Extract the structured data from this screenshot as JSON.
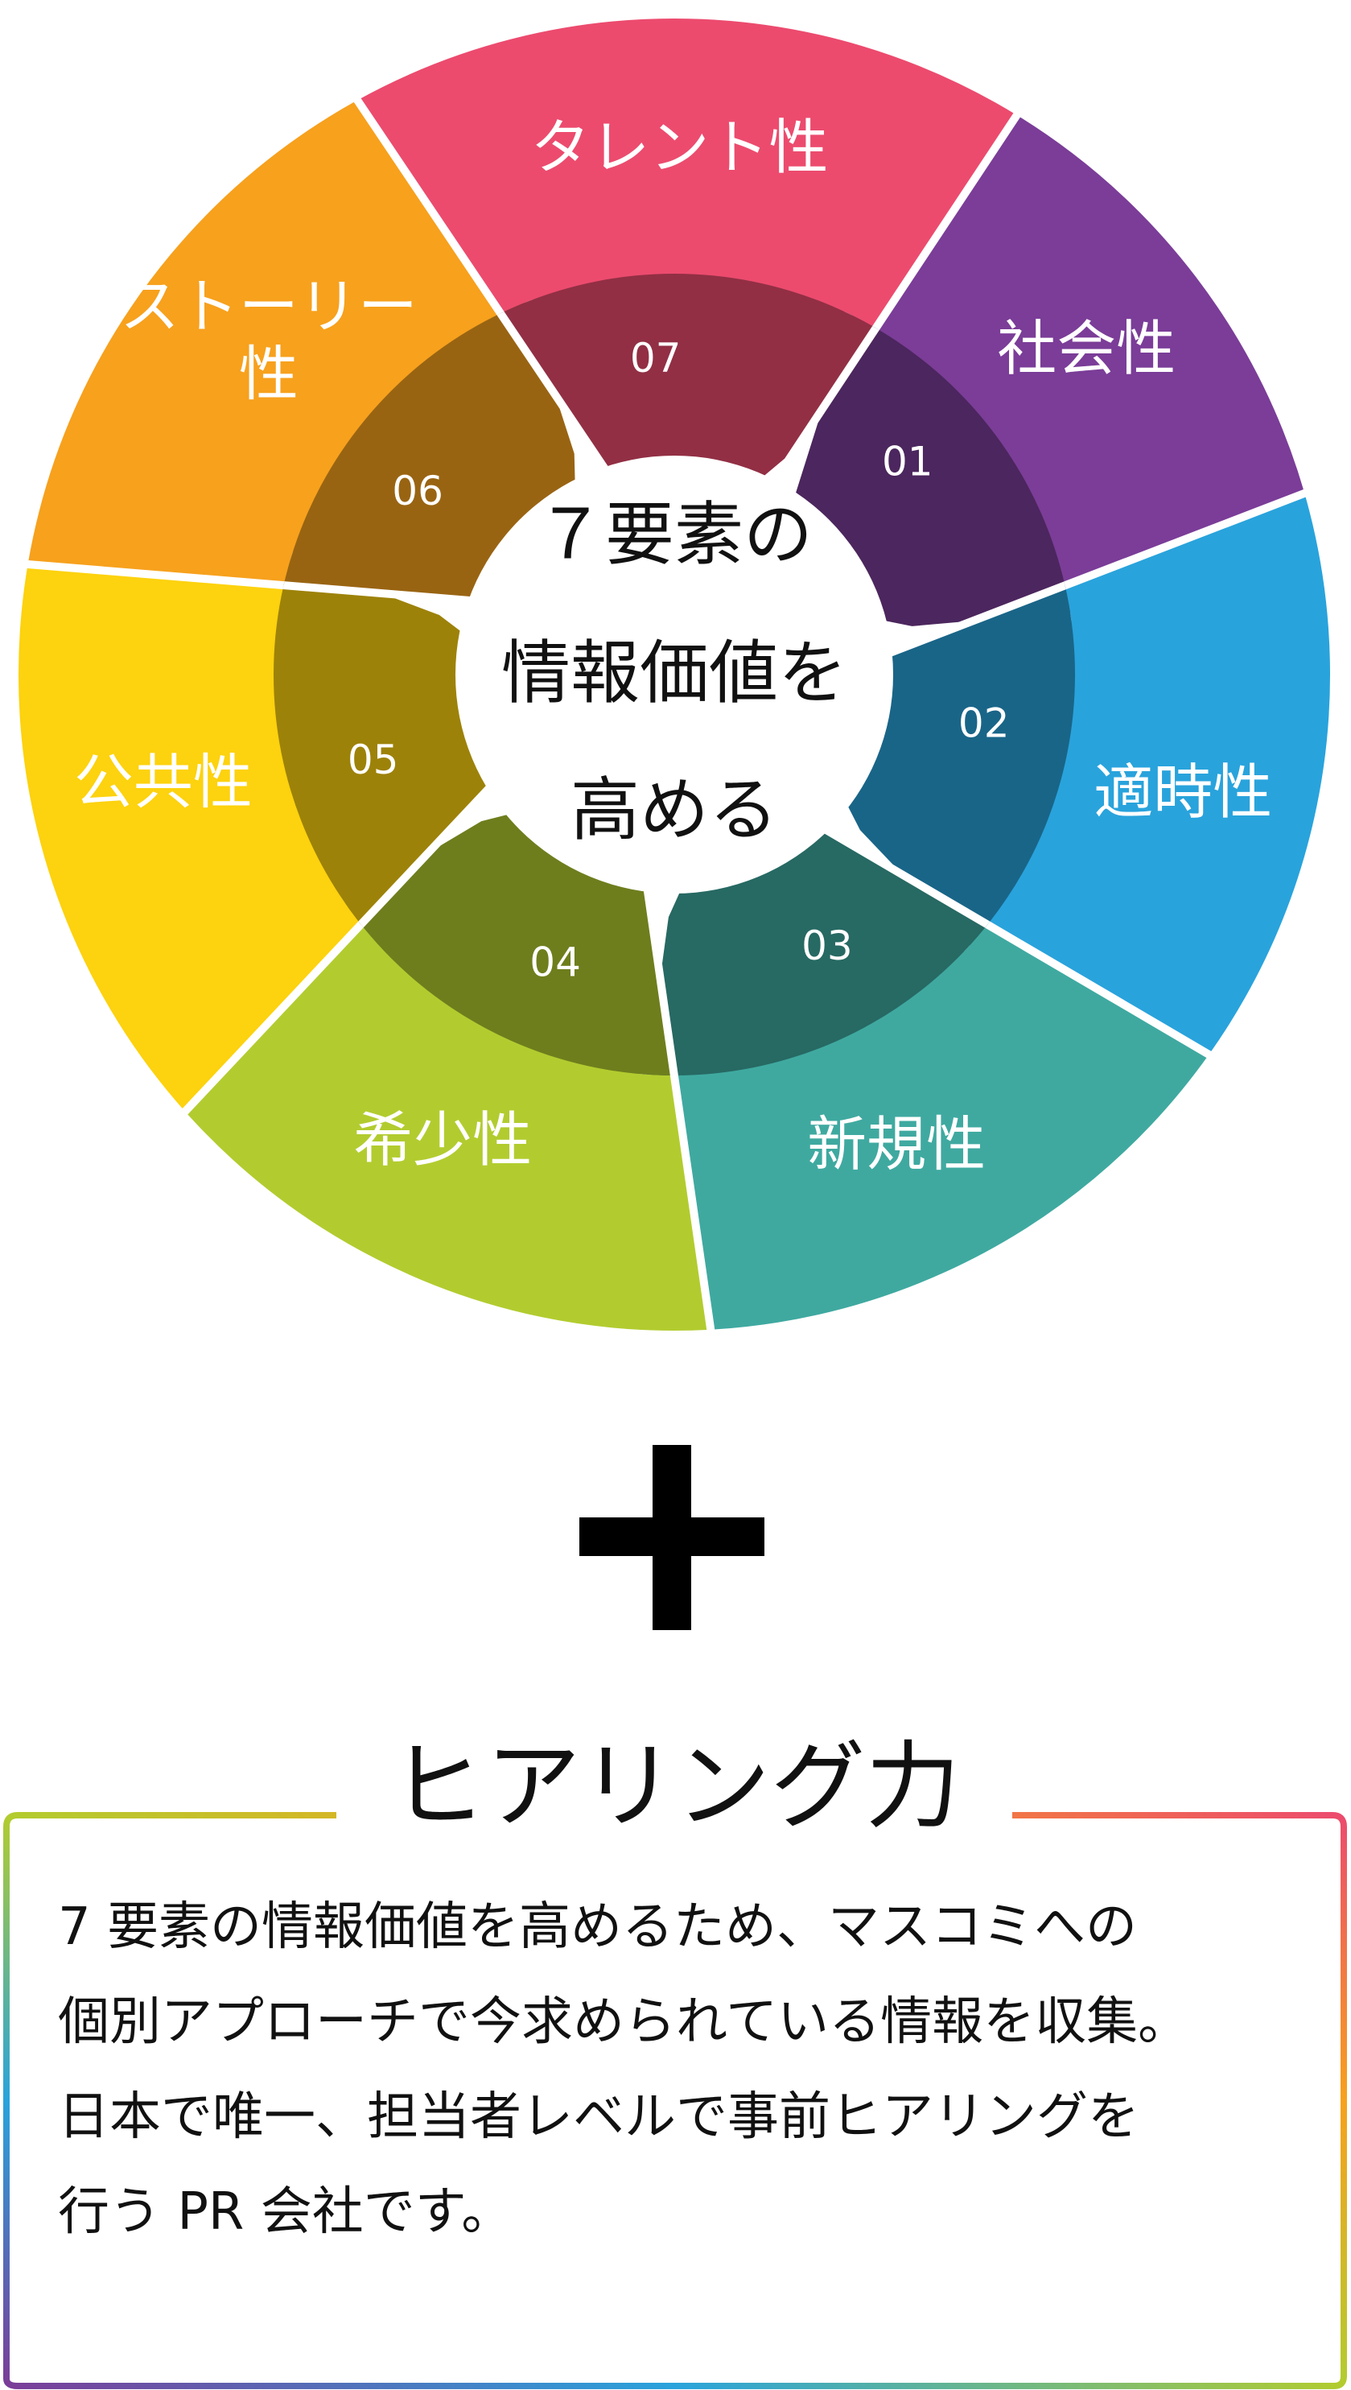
{
  "center": {
    "lines": [
      "７要素の",
      "情報価値を",
      "高める"
    ]
  },
  "segments": [
    {
      "number": "01",
      "label": [
        "社会性"
      ],
      "color": "#7b3d98"
    },
    {
      "number": "02",
      "label": [
        "適時性"
      ],
      "color": "#29a3dc"
    },
    {
      "number": "03",
      "label": [
        "新規性"
      ],
      "color": "#3fa9a0"
    },
    {
      "number": "04",
      "label": [
        "希少性"
      ],
      "color": "#b2cc2f"
    },
    {
      "number": "05",
      "label": [
        "公共性"
      ],
      "color": "#fdd20e"
    },
    {
      "number": "06",
      "label": [
        "ストーリー",
        "性"
      ],
      "color": "#f7a11d"
    },
    {
      "number": "07",
      "label": [
        "タレント性"
      ],
      "color": "#ec4b6e"
    }
  ],
  "plus_symbol": "+",
  "hearing": {
    "title": "ヒアリング力",
    "lines": [
      "7 要素の情報価値を高めるため、マスコミへの",
      "個別アプローチで今求められている情報を収集。",
      "日本で唯一、担当者レベルで事前ヒアリングを",
      "行う PR 会社です。"
    ]
  }
}
